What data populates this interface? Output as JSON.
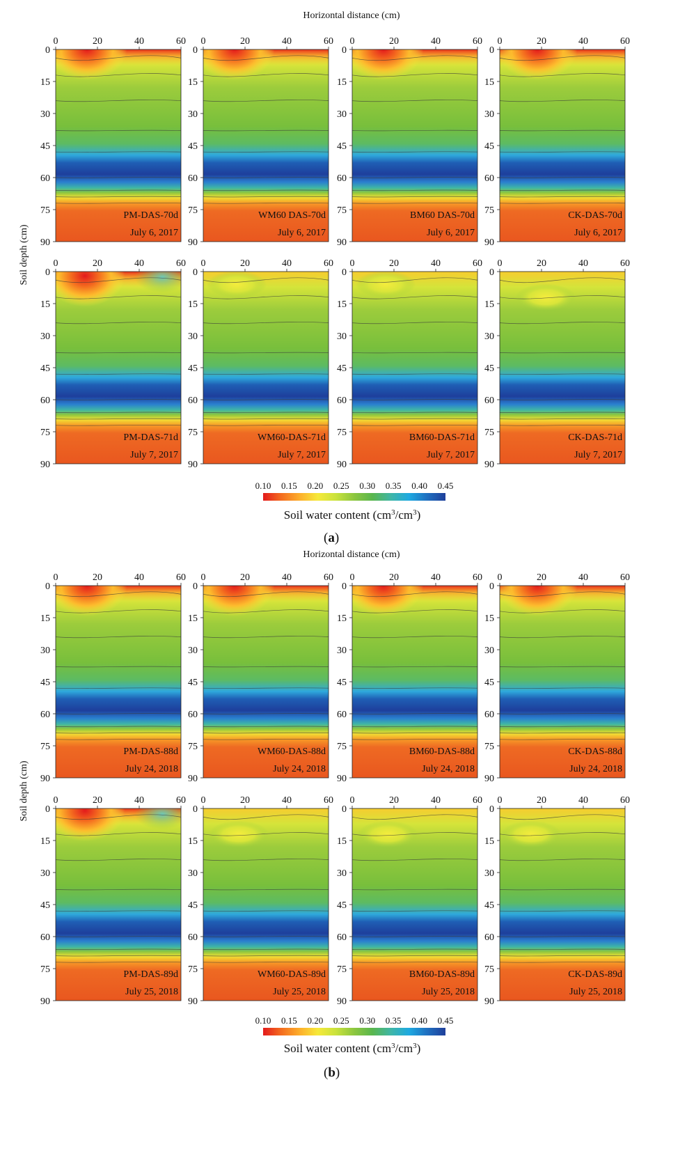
{
  "figure": {
    "xlabel": "Horizontal distance (cm)",
    "ylabel": "Soil depth (cm)",
    "colorbar_label_main": "Soil water content (cm",
    "colorbar_label_sup1": "3",
    "colorbar_label_mid": "/cm",
    "colorbar_label_sup2": "3",
    "colorbar_label_end": ")",
    "colorbar_ticks": [
      "0.10",
      "0.15",
      "0.20",
      "0.25",
      "0.30",
      "0.35",
      "0.40",
      "0.45"
    ],
    "colorbar_colors": [
      "#e31a1c",
      "#f46d1f",
      "#fdae2b",
      "#f6e93a",
      "#c9e23c",
      "#8cc63f",
      "#59b64d",
      "#3fb6a6",
      "#1ea9e1",
      "#1f6fc0",
      "#1f3f9a"
    ],
    "x_ticks": [
      "0",
      "20",
      "40",
      "60"
    ],
    "y_ticks": [
      "0",
      "15",
      "30",
      "45",
      "60",
      "75",
      "90"
    ],
    "panel_a_label": "a",
    "panel_b_label": "b"
  },
  "chart_data": [
    {
      "type": "heatmap",
      "group": "a",
      "title": "PM-DAS-70d",
      "date": "July 6, 2017",
      "x_range": [
        0,
        60
      ],
      "y_range": [
        0,
        90
      ],
      "wet_spot_x_cm": 15,
      "wet_spot_depth_cm": 0,
      "surface_swc": 0.1
    },
    {
      "type": "heatmap",
      "group": "a",
      "title": "WM60 DAS-70d",
      "date": "July 6, 2017",
      "x_range": [
        0,
        60
      ],
      "y_range": [
        0,
        90
      ],
      "wet_spot_x_cm": 15,
      "wet_spot_depth_cm": 0,
      "surface_swc": 0.12
    },
    {
      "type": "heatmap",
      "group": "a",
      "title": "BM60 DAS-70d",
      "date": "July 6, 2017",
      "x_range": [
        0,
        60
      ],
      "y_range": [
        0,
        90
      ],
      "wet_spot_x_cm": 15,
      "wet_spot_depth_cm": 0,
      "surface_swc": 0.12
    },
    {
      "type": "heatmap",
      "group": "a",
      "title": "CK-DAS-70d",
      "date": "July 6, 2017",
      "x_range": [
        0,
        60
      ],
      "y_range": [
        0,
        90
      ],
      "wet_spot_x_cm": 18,
      "wet_spot_depth_cm": 0,
      "surface_swc": 0.1
    },
    {
      "type": "heatmap",
      "group": "a",
      "title": "PM-DAS-71d",
      "date": "July 7, 2017",
      "x_range": [
        0,
        60
      ],
      "y_range": [
        0,
        90
      ],
      "wet_spot_x_cm": 14,
      "wet_spot_depth_cm": 2,
      "surface_swc": 0.1
    },
    {
      "type": "heatmap",
      "group": "a",
      "title": "WM60-DAS-71d",
      "date": "July 7, 2017",
      "x_range": [
        0,
        60
      ],
      "y_range": [
        0,
        90
      ],
      "wet_spot_x_cm": 16,
      "wet_spot_depth_cm": 6,
      "surface_swc": 0.19
    },
    {
      "type": "heatmap",
      "group": "a",
      "title": "BM60-DAS-71d",
      "date": "July 7, 2017",
      "x_range": [
        0,
        60
      ],
      "y_range": [
        0,
        90
      ],
      "wet_spot_x_cm": 16,
      "wet_spot_depth_cm": 6,
      "surface_swc": 0.19
    },
    {
      "type": "heatmap",
      "group": "a",
      "title": "CK-DAS-71d",
      "date": "July 7, 2017",
      "x_range": [
        0,
        60
      ],
      "y_range": [
        0,
        90
      ],
      "wet_spot_x_cm": 22,
      "wet_spot_depth_cm": 12,
      "surface_swc": 0.19
    },
    {
      "type": "heatmap",
      "group": "b",
      "title": "PM-DAS-88d",
      "date": "July 24, 2018",
      "x_range": [
        0,
        60
      ],
      "y_range": [
        0,
        90
      ],
      "wet_spot_x_cm": 15,
      "wet_spot_depth_cm": 0,
      "surface_swc": 0.15
    },
    {
      "type": "heatmap",
      "group": "b",
      "title": "WM60-DAS-88d",
      "date": "July 24, 2018",
      "x_range": [
        0,
        60
      ],
      "y_range": [
        0,
        90
      ],
      "wet_spot_x_cm": 15,
      "wet_spot_depth_cm": 0,
      "surface_swc": 0.12
    },
    {
      "type": "heatmap",
      "group": "b",
      "title": "BM60-DAS-88d",
      "date": "July 24, 2018",
      "x_range": [
        0,
        60
      ],
      "y_range": [
        0,
        90
      ],
      "wet_spot_x_cm": 15,
      "wet_spot_depth_cm": 0,
      "surface_swc": 0.12
    },
    {
      "type": "heatmap",
      "group": "b",
      "title": "CK-DAS-88d",
      "date": "July 24, 2018",
      "x_range": [
        0,
        60
      ],
      "y_range": [
        0,
        90
      ],
      "wet_spot_x_cm": 18,
      "wet_spot_depth_cm": 0,
      "surface_swc": 0.1
    },
    {
      "type": "heatmap",
      "group": "b",
      "title": "PM-DAS-89d",
      "date": "July 25, 2018",
      "x_range": [
        0,
        60
      ],
      "y_range": [
        0,
        90
      ],
      "wet_spot_x_cm": 14,
      "wet_spot_depth_cm": 1,
      "surface_swc": 0.1
    },
    {
      "type": "heatmap",
      "group": "b",
      "title": "WM60-DAS-89d",
      "date": "July 25, 2018",
      "x_range": [
        0,
        60
      ],
      "y_range": [
        0,
        90
      ],
      "wet_spot_x_cm": 17,
      "wet_spot_depth_cm": 12,
      "surface_swc": 0.2
    },
    {
      "type": "heatmap",
      "group": "b",
      "title": "BM60-DAS-89d",
      "date": "July 25, 2018",
      "x_range": [
        0,
        60
      ],
      "y_range": [
        0,
        90
      ],
      "wet_spot_x_cm": 17,
      "wet_spot_depth_cm": 12,
      "surface_swc": 0.2
    },
    {
      "type": "heatmap",
      "group": "b",
      "title": "CK-DAS-89d",
      "date": "July 25, 2018",
      "x_range": [
        0,
        60
      ],
      "y_range": [
        0,
        90
      ],
      "wet_spot_x_cm": 15,
      "wet_spot_depth_cm": 12,
      "surface_swc": 0.19
    }
  ]
}
